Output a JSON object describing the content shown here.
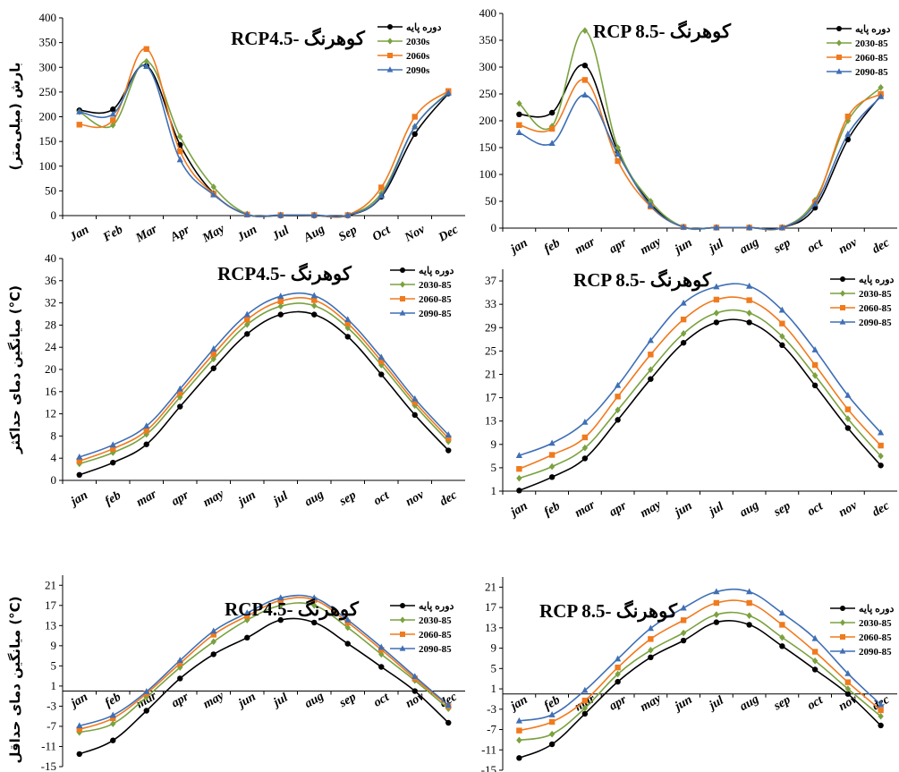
{
  "colors": {
    "base": "#000000",
    "s1": "#7AA23F",
    "s2": "#F07A1E",
    "s3": "#3F6FB5"
  },
  "chart_data": [
    {
      "type": "line",
      "title": "RCP4.5- کوهرنگ",
      "ylabel": "بارش (میلی‌متر)",
      "xlabel": "",
      "categories": [
        "Jan",
        "Feb",
        "Mar",
        "Apr",
        "May",
        "Jun",
        "Jul",
        "Aug",
        "Sep",
        "Oct",
        "Nov",
        "Dec"
      ],
      "ylim": [
        0,
        400
      ],
      "yticks": [
        0,
        50,
        100,
        150,
        200,
        250,
        300,
        350,
        400
      ],
      "legend_position": "top-right",
      "series": [
        {
          "name": "دوره پایه",
          "color": "#000000",
          "marker": "circle",
          "values": [
            213,
            215,
            303,
            143,
            45,
            2,
            0,
            0,
            0,
            38,
            165,
            247
          ]
        },
        {
          "name": "2030s",
          "color": "#7AA23F",
          "marker": "diamond",
          "values": [
            210,
            183,
            312,
            160,
            58,
            3,
            1,
            1,
            1,
            45,
            180,
            250
          ]
        },
        {
          "name": "2060s",
          "color": "#F07A1E",
          "marker": "square",
          "values": [
            184,
            193,
            337,
            130,
            44,
            2,
            1,
            1,
            1,
            57,
            200,
            252
          ]
        },
        {
          "name": "2090s",
          "color": "#3F6FB5",
          "marker": "triangle",
          "values": [
            210,
            205,
            302,
            113,
            42,
            2,
            1,
            1,
            1,
            40,
            180,
            248
          ]
        }
      ]
    },
    {
      "type": "line",
      "title": "RCP 8.5- کوهرنگ",
      "ylabel": "",
      "xlabel": "",
      "categories": [
        "jan",
        "feb",
        "mar",
        "apr",
        "may",
        "jun",
        "jul",
        "aug",
        "sep",
        "oct",
        "nov",
        "dec"
      ],
      "ylim": [
        0,
        400
      ],
      "yticks": [
        0,
        50,
        100,
        150,
        200,
        250,
        300,
        350,
        400
      ],
      "legend_position": "top-right",
      "series": [
        {
          "name": "دوره پایه",
          "color": "#000000",
          "marker": "circle",
          "values": [
            212,
            215,
            303,
            143,
            45,
            2,
            1,
            1,
            1,
            38,
            165,
            247
          ]
        },
        {
          "name": "2030-85",
          "color": "#7AA23F",
          "marker": "diamond",
          "values": [
            232,
            190,
            368,
            150,
            50,
            2,
            1,
            1,
            1,
            52,
            200,
            262
          ]
        },
        {
          "name": "2060-85",
          "color": "#F07A1E",
          "marker": "square",
          "values": [
            192,
            185,
            276,
            125,
            40,
            2,
            1,
            1,
            1,
            48,
            208,
            250
          ]
        },
        {
          "name": "2090-85",
          "color": "#3F6FB5",
          "marker": "triangle",
          "values": [
            178,
            158,
            248,
            138,
            42,
            2,
            1,
            1,
            1,
            45,
            175,
            245
          ]
        }
      ]
    },
    {
      "type": "line",
      "title": "RCP4.5- کوهرنگ",
      "ylabel": "میانگین دمای حداکثر (°C)",
      "xlabel": "",
      "categories": [
        "jan",
        "feb",
        "mar",
        "apr",
        "may",
        "jun",
        "jul",
        "aug",
        "sep",
        "oct",
        "nov",
        "dec"
      ],
      "ylim": [
        0,
        40
      ],
      "yticks": [
        0,
        4,
        8,
        12,
        16,
        20,
        24,
        28,
        32,
        36,
        40
      ],
      "legend_position": "top-right",
      "series": [
        {
          "name": "دوره پایه",
          "color": "#000000",
          "marker": "circle",
          "values": [
            1.0,
            3.2,
            6.5,
            13.3,
            20.2,
            26.4,
            29.9,
            29.9,
            25.9,
            19.1,
            11.8,
            5.4
          ]
        },
        {
          "name": "2030-85",
          "color": "#7AA23F",
          "marker": "diamond",
          "values": [
            3.0,
            5.0,
            8.3,
            15.0,
            21.9,
            28.1,
            31.4,
            31.5,
            27.5,
            20.8,
            13.5,
            7.0
          ]
        },
        {
          "name": "2060-85",
          "color": "#F07A1E",
          "marker": "square",
          "values": [
            3.5,
            5.7,
            9.0,
            15.8,
            22.8,
            29.0,
            32.3,
            32.5,
            28.3,
            21.5,
            14.1,
            7.6
          ]
        },
        {
          "name": "2090-85",
          "color": "#3F6FB5",
          "marker": "triangle",
          "values": [
            4.2,
            6.4,
            9.8,
            16.5,
            23.7,
            29.9,
            33.2,
            33.3,
            29.0,
            22.2,
            14.7,
            8.2
          ]
        }
      ]
    },
    {
      "type": "line",
      "title": "RCP 8.5- کوهرنگ",
      "ylabel": "",
      "xlabel": "",
      "categories": [
        "jan",
        "feb",
        "mar",
        "apr",
        "may",
        "jun",
        "jul",
        "aug",
        "sep",
        "oct",
        "nov",
        "dec"
      ],
      "ylim": [
        1,
        39
      ],
      "yticks": [
        1,
        5,
        9,
        13,
        17,
        21,
        25,
        29,
        33,
        37
      ],
      "legend_position": "top-right",
      "series": [
        {
          "name": "دوره پایه",
          "color": "#000000",
          "marker": "circle",
          "values": [
            1.1,
            3.4,
            6.6,
            13.2,
            20.2,
            26.4,
            29.9,
            29.9,
            26.0,
            19.1,
            11.8,
            5.4
          ]
        },
        {
          "name": "2030-85",
          "color": "#7AA23F",
          "marker": "diamond",
          "values": [
            3.2,
            5.2,
            8.4,
            14.9,
            21.8,
            28.0,
            31.5,
            31.5,
            27.5,
            20.8,
            13.4,
            7.0
          ]
        },
        {
          "name": "2060-85",
          "color": "#F07A1E",
          "marker": "square",
          "values": [
            4.8,
            7.2,
            10.2,
            17.2,
            24.4,
            30.4,
            33.8,
            33.7,
            29.7,
            22.6,
            15.0,
            8.8
          ]
        },
        {
          "name": "2090-85",
          "color": "#3F6FB5",
          "marker": "triangle",
          "values": [
            7.1,
            9.2,
            12.8,
            19.1,
            26.8,
            33.2,
            36.0,
            36.1,
            32.0,
            25.2,
            17.4,
            11.0
          ]
        }
      ]
    },
    {
      "type": "line",
      "title": "RCP4.5- کوهرنگ",
      "ylabel": "میانگین دمای حداقل (°C)",
      "xlabel": "",
      "categories": [
        "jan",
        "feb",
        "mar",
        "apr",
        "may",
        "jun",
        "jul",
        "aug",
        "sep",
        "oct",
        "nov",
        "dec"
      ],
      "ylim": [
        -15,
        23
      ],
      "yticks": [
        -15,
        -11,
        -7,
        -3,
        1,
        5,
        9,
        13,
        17,
        21
      ],
      "x_axis_at": 0,
      "legend_position": "top-right",
      "series": [
        {
          "name": "دوره پایه",
          "color": "#000000",
          "marker": "circle",
          "values": [
            -12.5,
            -9.8,
            -3.9,
            2.5,
            7.3,
            10.6,
            14.1,
            13.6,
            9.4,
            4.8,
            0.0,
            -6.3
          ]
        },
        {
          "name": "2030-85",
          "color": "#7AA23F",
          "marker": "diamond",
          "values": [
            -8.2,
            -6.5,
            -1.2,
            4.7,
            9.8,
            14.1,
            17.0,
            17.0,
            12.6,
            7.3,
            2.1,
            -3.5
          ]
        },
        {
          "name": "2060-85",
          "color": "#F07A1E",
          "marker": "square",
          "values": [
            -7.6,
            -5.4,
            -0.5,
            5.5,
            11.2,
            14.9,
            18.0,
            18.1,
            13.6,
            8.2,
            2.5,
            -3.0
          ]
        },
        {
          "name": "2090-85",
          "color": "#3F6FB5",
          "marker": "triangle",
          "values": [
            -6.9,
            -4.8,
            -0.1,
            6.1,
            11.9,
            15.5,
            18.5,
            18.5,
            14.1,
            8.7,
            2.9,
            -2.8
          ]
        }
      ]
    },
    {
      "type": "line",
      "title": "RCP 8.5- کوهرنگ",
      "ylabel": "",
      "xlabel": "",
      "categories": [
        "jan",
        "feb",
        "mar",
        "apr",
        "may",
        "jun",
        "jul",
        "aug",
        "sep",
        "oct",
        "nov",
        "dec"
      ],
      "ylim": [
        -15,
        23
      ],
      "yticks": [
        -15,
        -11,
        -7,
        -3,
        1,
        5,
        9,
        13,
        17,
        21
      ],
      "x_axis_at": 0,
      "legend_position": "top-right",
      "series": [
        {
          "name": "دوره پایه",
          "color": "#000000",
          "marker": "circle",
          "values": [
            -12.6,
            -9.9,
            -3.9,
            2.4,
            7.2,
            10.5,
            14.1,
            13.6,
            9.4,
            4.8,
            0.0,
            -6.2
          ]
        },
        {
          "name": "2030-85",
          "color": "#7AA23F",
          "marker": "diamond",
          "values": [
            -9.1,
            -7.9,
            -2.8,
            3.9,
            8.6,
            12.0,
            15.6,
            15.4,
            11.1,
            6.5,
            1.0,
            -4.4
          ]
        },
        {
          "name": "2060-85",
          "color": "#F07A1E",
          "marker": "square",
          "values": [
            -7.2,
            -5.5,
            -1.3,
            5.2,
            10.8,
            14.5,
            17.9,
            17.9,
            13.6,
            8.3,
            2.3,
            -3.2
          ]
        },
        {
          "name": "2090-85",
          "color": "#3F6FB5",
          "marker": "triangle",
          "values": [
            -5.3,
            -4.1,
            0.7,
            6.9,
            12.9,
            16.9,
            20.1,
            20.1,
            15.9,
            10.9,
            4.0,
            -2.1
          ]
        }
      ]
    }
  ]
}
